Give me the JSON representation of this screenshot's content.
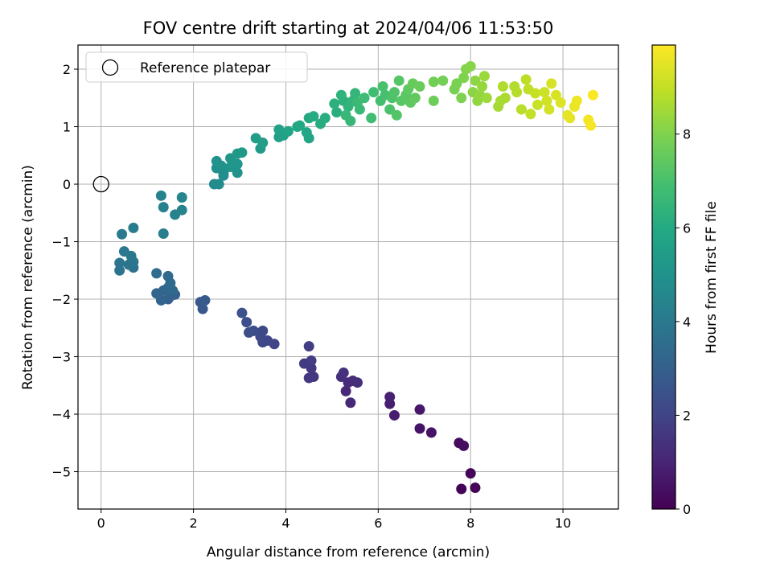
{
  "chart_data": {
    "type": "scatter",
    "title": "FOV centre drift starting at 2024/04/06 11:53:50",
    "xlabel": "Angular distance from reference (arcmin)",
    "ylabel": "Rotation from reference (arcmin)",
    "colorbar_label": "Hours from first FF file",
    "xlim": [
      -0.5,
      11.2
    ],
    "ylim": [
      -5.65,
      2.42
    ],
    "x_ticks": [
      0,
      2,
      4,
      6,
      8,
      10
    ],
    "y_ticks": [
      -5,
      -4,
      -3,
      -2,
      -1,
      0,
      1,
      2
    ],
    "colorbar_range": [
      0,
      9.9
    ],
    "colorbar_ticks": [
      0,
      2,
      4,
      6,
      8
    ],
    "colormap": "viridis",
    "grid": true,
    "legend": {
      "placement": "top-left",
      "entries": [
        {
          "label": "Reference platepar",
          "marker": "open-circle"
        }
      ]
    },
    "reference_point": {
      "x": 0,
      "y": 0
    },
    "points": [
      [
        7.8,
        -5.3,
        0.05
      ],
      [
        8.1,
        -5.28,
        0.1
      ],
      [
        8.0,
        -5.03,
        0.15
      ],
      [
        7.75,
        -4.5,
        0.3
      ],
      [
        7.85,
        -4.55,
        0.35
      ],
      [
        7.15,
        -4.32,
        0.5
      ],
      [
        6.9,
        -4.25,
        0.55
      ],
      [
        6.9,
        -3.92,
        0.65
      ],
      [
        6.35,
        -4.02,
        0.8
      ],
      [
        6.25,
        -3.82,
        0.85
      ],
      [
        6.25,
        -3.7,
        0.9
      ],
      [
        5.4,
        -3.8,
        1.1
      ],
      [
        5.3,
        -3.6,
        1.15
      ],
      [
        5.35,
        -3.45,
        1.2
      ],
      [
        5.45,
        -3.42,
        1.25
      ],
      [
        5.55,
        -3.45,
        1.3
      ],
      [
        5.2,
        -3.35,
        1.35
      ],
      [
        5.25,
        -3.28,
        1.4
      ],
      [
        4.6,
        -3.35,
        1.55
      ],
      [
        4.5,
        -3.37,
        1.6
      ],
      [
        4.55,
        -3.2,
        1.65
      ],
      [
        4.4,
        -3.12,
        1.7
      ],
      [
        4.55,
        -3.07,
        1.75
      ],
      [
        4.5,
        -2.82,
        1.8
      ],
      [
        3.75,
        -2.78,
        2.0
      ],
      [
        3.6,
        -2.72,
        2.05
      ],
      [
        3.5,
        -2.75,
        2.1
      ],
      [
        3.45,
        -2.65,
        2.15
      ],
      [
        3.5,
        -2.55,
        2.2
      ],
      [
        3.3,
        -2.55,
        2.3
      ],
      [
        3.2,
        -2.58,
        2.35
      ],
      [
        3.15,
        -2.4,
        2.4
      ],
      [
        3.05,
        -2.24,
        2.5
      ],
      [
        2.2,
        -2.17,
        2.7
      ],
      [
        2.15,
        -2.05,
        2.75
      ],
      [
        2.25,
        -2.02,
        2.8
      ],
      [
        1.45,
        -2.0,
        3.0
      ],
      [
        1.5,
        -1.95,
        3.05
      ],
      [
        1.6,
        -1.92,
        3.1
      ],
      [
        1.3,
        -2.02,
        3.15
      ],
      [
        1.2,
        -1.9,
        3.2
      ],
      [
        1.35,
        -1.85,
        3.25
      ],
      [
        1.45,
        -1.8,
        3.3
      ],
      [
        1.55,
        -1.85,
        3.35
      ],
      [
        1.5,
        -1.72,
        3.4
      ],
      [
        1.45,
        -1.6,
        3.45
      ],
      [
        1.2,
        -1.55,
        3.5
      ],
      [
        0.7,
        -1.45,
        3.7
      ],
      [
        0.6,
        -1.4,
        3.75
      ],
      [
        0.4,
        -1.5,
        3.8
      ],
      [
        0.4,
        -1.37,
        3.85
      ],
      [
        0.7,
        -1.35,
        3.9
      ],
      [
        0.65,
        -1.25,
        3.95
      ],
      [
        0.5,
        -1.17,
        4.0
      ],
      [
        0.45,
        -0.87,
        4.05
      ],
      [
        0.7,
        -0.76,
        4.1
      ],
      [
        1.35,
        -0.86,
        4.2
      ],
      [
        1.35,
        -0.4,
        4.3
      ],
      [
        1.3,
        -0.2,
        4.35
      ],
      [
        1.6,
        -0.53,
        4.4
      ],
      [
        1.75,
        -0.45,
        4.45
      ],
      [
        1.75,
        -0.23,
        4.5
      ],
      [
        2.45,
        0.0,
        4.7
      ],
      [
        2.55,
        0.0,
        4.75
      ],
      [
        2.65,
        0.15,
        4.8
      ],
      [
        2.65,
        0.2,
        4.85
      ],
      [
        2.5,
        0.28,
        4.9
      ],
      [
        2.6,
        0.32,
        4.95
      ],
      [
        2.5,
        0.4,
        5.0
      ],
      [
        2.95,
        0.2,
        5.05
      ],
      [
        2.8,
        0.3,
        5.1
      ],
      [
        2.95,
        0.35,
        5.15
      ],
      [
        2.8,
        0.45,
        5.2
      ],
      [
        2.95,
        0.53,
        5.25
      ],
      [
        3.05,
        0.55,
        5.3
      ],
      [
        3.45,
        0.62,
        5.4
      ],
      [
        3.5,
        0.72,
        5.45
      ],
      [
        3.35,
        0.8,
        5.5
      ],
      [
        3.85,
        0.82,
        5.6
      ],
      [
        3.95,
        0.85,
        5.65
      ],
      [
        3.85,
        0.95,
        5.7
      ],
      [
        4.05,
        0.92,
        5.75
      ],
      [
        4.5,
        0.8,
        5.8
      ],
      [
        4.45,
        0.9,
        5.85
      ],
      [
        4.25,
        1.0,
        5.9
      ],
      [
        4.3,
        1.02,
        5.95
      ],
      [
        4.5,
        1.15,
        6.0
      ],
      [
        4.6,
        1.18,
        6.05
      ],
      [
        4.75,
        1.05,
        6.1
      ],
      [
        4.85,
        1.15,
        6.15
      ],
      [
        5.1,
        1.25,
        6.2
      ],
      [
        5.05,
        1.4,
        6.25
      ],
      [
        5.25,
        1.45,
        6.3
      ],
      [
        5.2,
        1.55,
        6.35
      ],
      [
        5.35,
        1.35,
        6.4
      ],
      [
        5.45,
        1.45,
        6.45
      ],
      [
        5.5,
        1.58,
        6.5
      ],
      [
        5.4,
        1.1,
        6.55
      ],
      [
        5.3,
        1.2,
        6.6
      ],
      [
        5.6,
        1.3,
        6.65
      ],
      [
        5.55,
        1.42,
        6.7
      ],
      [
        5.7,
        1.5,
        6.75
      ],
      [
        5.85,
        1.15,
        6.8
      ],
      [
        5.9,
        1.6,
        6.85
      ],
      [
        6.05,
        1.45,
        6.9
      ],
      [
        6.15,
        1.55,
        6.95
      ],
      [
        6.1,
        1.7,
        7.0
      ],
      [
        6.25,
        1.3,
        7.05
      ],
      [
        6.3,
        1.5,
        7.1
      ],
      [
        6.35,
        1.6,
        7.15
      ],
      [
        6.4,
        1.2,
        7.2
      ],
      [
        6.45,
        1.8,
        7.25
      ],
      [
        6.5,
        1.45,
        7.3
      ],
      [
        6.6,
        1.55,
        7.35
      ],
      [
        6.65,
        1.65,
        7.4
      ],
      [
        6.7,
        1.42,
        7.45
      ],
      [
        6.8,
        1.5,
        7.5
      ],
      [
        6.75,
        1.75,
        7.55
      ],
      [
        6.9,
        1.7,
        7.6
      ],
      [
        7.2,
        1.45,
        7.7
      ],
      [
        7.2,
        1.78,
        7.75
      ],
      [
        7.4,
        1.8,
        7.8
      ],
      [
        7.65,
        1.65,
        7.85
      ],
      [
        7.7,
        1.75,
        7.9
      ],
      [
        7.8,
        1.5,
        7.95
      ],
      [
        7.85,
        1.85,
        8.0
      ],
      [
        7.9,
        2.0,
        8.05
      ],
      [
        8.0,
        2.05,
        8.1
      ],
      [
        8.05,
        1.6,
        8.15
      ],
      [
        8.1,
        1.8,
        8.2
      ],
      [
        8.15,
        1.45,
        8.25
      ],
      [
        8.2,
        1.55,
        8.3
      ],
      [
        8.25,
        1.7,
        8.35
      ],
      [
        8.3,
        1.88,
        8.4
      ],
      [
        8.35,
        1.5,
        8.45
      ],
      [
        8.6,
        1.35,
        8.55
      ],
      [
        8.65,
        1.45,
        8.6
      ],
      [
        8.75,
        1.5,
        8.65
      ],
      [
        8.7,
        1.7,
        8.7
      ],
      [
        8.95,
        1.7,
        8.75
      ],
      [
        9.0,
        1.6,
        8.8
      ],
      [
        9.1,
        1.3,
        8.85
      ],
      [
        9.2,
        1.82,
        8.9
      ],
      [
        9.25,
        1.65,
        8.95
      ],
      [
        9.3,
        1.22,
        9.0
      ],
      [
        9.4,
        1.58,
        9.05
      ],
      [
        9.45,
        1.38,
        9.1
      ],
      [
        9.6,
        1.6,
        9.15
      ],
      [
        9.65,
        1.45,
        9.2
      ],
      [
        9.7,
        1.3,
        9.25
      ],
      [
        9.75,
        1.75,
        9.3
      ],
      [
        9.85,
        1.55,
        9.35
      ],
      [
        9.95,
        1.42,
        9.4
      ],
      [
        10.1,
        1.2,
        9.5
      ],
      [
        10.15,
        1.15,
        9.55
      ],
      [
        10.25,
        1.35,
        9.6
      ],
      [
        10.3,
        1.45,
        9.65
      ],
      [
        10.55,
        1.12,
        9.75
      ],
      [
        10.6,
        1.02,
        9.8
      ],
      [
        10.65,
        1.55,
        9.85
      ]
    ]
  }
}
